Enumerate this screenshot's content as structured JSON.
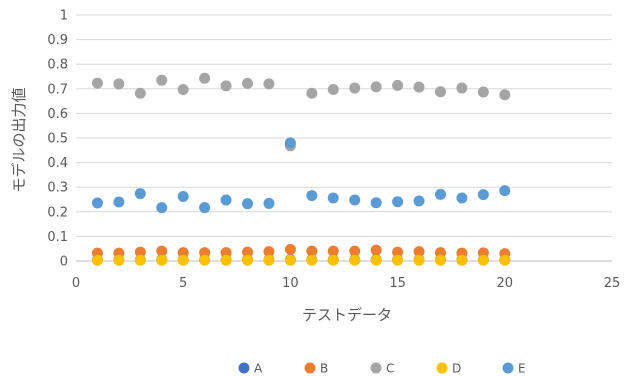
{
  "chart_data": {
    "type": "scatter",
    "title": "",
    "xlabel": "テストデータ",
    "ylabel": "モデルの出力値",
    "xlim": [
      0,
      25
    ],
    "ylim": [
      0,
      1
    ],
    "xticks": [
      0,
      5,
      10,
      15,
      20,
      25
    ],
    "yticks": [
      0,
      0.1,
      0.2,
      0.3,
      0.4,
      0.5,
      0.6,
      0.7,
      0.8,
      0.9,
      1
    ],
    "grid": true,
    "legend_position": "bottom",
    "x": [
      1,
      2,
      3,
      4,
      5,
      6,
      7,
      8,
      9,
      10,
      11,
      12,
      13,
      14,
      15,
      16,
      17,
      18,
      19,
      20
    ],
    "series": [
      {
        "name": "A",
        "color": "#4472C4",
        "values": [
          0.005,
          0.005,
          0.005,
          0.005,
          0.005,
          0.005,
          0.005,
          0.005,
          0.005,
          0.005,
          0.005,
          0.005,
          0.005,
          0.005,
          0.005,
          0.005,
          0.005,
          0.005,
          0.005,
          0.005
        ]
      },
      {
        "name": "B",
        "color": "#ED7D31",
        "values": [
          0.032,
          0.032,
          0.036,
          0.04,
          0.034,
          0.034,
          0.034,
          0.036,
          0.038,
          0.047,
          0.04,
          0.04,
          0.04,
          0.044,
          0.036,
          0.038,
          0.034,
          0.032,
          0.033,
          0.03
        ]
      },
      {
        "name": "C",
        "color": "#A5A5A5",
        "values": [
          0.723,
          0.72,
          0.682,
          0.735,
          0.697,
          0.743,
          0.712,
          0.722,
          0.72,
          0.468,
          0.682,
          0.697,
          0.703,
          0.708,
          0.714,
          0.707,
          0.688,
          0.703,
          0.687,
          0.676
        ]
      },
      {
        "name": "D",
        "color": "#FFC000",
        "values": [
          0.003,
          0.003,
          0.003,
          0.003,
          0.003,
          0.003,
          0.003,
          0.003,
          0.003,
          0.003,
          0.003,
          0.003,
          0.003,
          0.003,
          0.003,
          0.003,
          0.003,
          0.003,
          0.003,
          0.003
        ]
      },
      {
        "name": "E",
        "color": "#5B9BD5",
        "values": [
          0.236,
          0.24,
          0.274,
          0.217,
          0.262,
          0.217,
          0.248,
          0.233,
          0.234,
          0.48,
          0.266,
          0.256,
          0.248,
          0.237,
          0.241,
          0.244,
          0.271,
          0.256,
          0.27,
          0.286
        ]
      }
    ]
  }
}
